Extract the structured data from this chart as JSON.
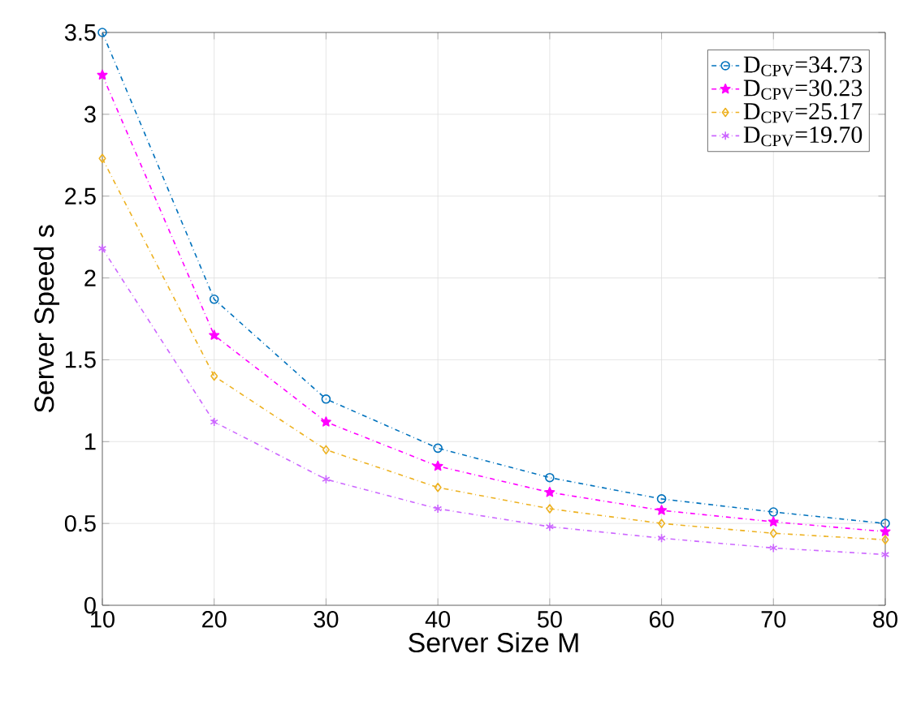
{
  "chart_data": {
    "type": "line",
    "xlabel": "Server Size M",
    "ylabel": "Server Speed s",
    "x": [
      10,
      20,
      30,
      40,
      50,
      60,
      70,
      80
    ],
    "series": [
      {
        "name": "D$_{CPV}$=34.73",
        "color": "#0072bd",
        "marker": "circle",
        "values": [
          3.5,
          1.87,
          1.26,
          0.96,
          0.78,
          0.65,
          0.57,
          0.5
        ]
      },
      {
        "name": "D$_{CPV}$=30.23",
        "color": "#ff00ff",
        "marker": "star",
        "values": [
          3.24,
          1.65,
          1.12,
          0.85,
          0.69,
          0.58,
          0.51,
          0.45
        ]
      },
      {
        "name": "D$_{CPV}$=25.17",
        "color": "#edb120",
        "marker": "diamond",
        "values": [
          2.73,
          1.4,
          0.95,
          0.72,
          0.59,
          0.5,
          0.44,
          0.4
        ]
      },
      {
        "name": "D$_{CPV}$=19.70",
        "color": "#cc66ff",
        "marker": "cross",
        "values": [
          2.18,
          1.12,
          0.77,
          0.59,
          0.48,
          0.41,
          0.35,
          0.31
        ]
      }
    ],
    "xlim": [
      10,
      80
    ],
    "xticks": [
      10,
      20,
      30,
      40,
      50,
      60,
      70,
      80
    ],
    "ylim": [
      0,
      3.5
    ],
    "yticks": [
      0,
      0.5,
      1,
      1.5,
      2,
      2.5,
      3,
      3.5
    ],
    "grid": true,
    "legend": "top right",
    "line_style": "dashed"
  }
}
